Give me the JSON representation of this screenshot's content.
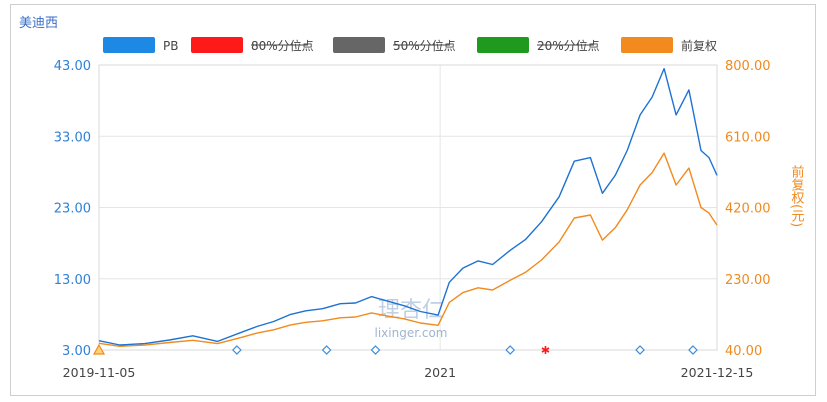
{
  "chart_data": {
    "type": "line",
    "title": "美迪西",
    "x_tick_labels": [
      "2019-11-05",
      "2021",
      "2021-12-15"
    ],
    "x_range": [
      "2019-11-05",
      "2021-12-15"
    ],
    "y_left": {
      "ticks": [
        "3.00",
        "13.00",
        "23.00",
        "33.00",
        "43.00"
      ],
      "range": [
        3,
        43
      ],
      "color": "#2f82d6"
    },
    "y_right": {
      "label": "前复权(元)",
      "ticks": [
        "40.00",
        "230.00",
        "420.00",
        "610.00",
        "800.00"
      ],
      "range": [
        40,
        800
      ],
      "color": "#f08a1e"
    },
    "legend": [
      {
        "name": "PB",
        "color": "#1e88e5",
        "struck": false
      },
      {
        "name": "80%分位点",
        "color": "#ff1a1a",
        "struck": true
      },
      {
        "name": "50%分位点",
        "color": "#666666",
        "struck": true
      },
      {
        "name": "20%分位点",
        "color": "#1f9a1f",
        "struck": true
      },
      {
        "name": "前复权",
        "color": "#f28a1e",
        "struck": false
      }
    ],
    "legend_position": "top",
    "grid": true,
    "series": [
      {
        "name": "PB",
        "axis": "left",
        "x": [
          "2019-11-05",
          "2019-12-01",
          "2020-01-01",
          "2020-02-01",
          "2020-03-01",
          "2020-04-01",
          "2020-05-01",
          "2020-05-20",
          "2020-06-10",
          "2020-07-01",
          "2020-07-20",
          "2020-08-10",
          "2020-09-01",
          "2020-09-20",
          "2020-10-10",
          "2020-11-01",
          "2020-11-20",
          "2020-12-10",
          "2021-01-01",
          "2021-01-15",
          "2021-02-01",
          "2021-02-20",
          "2021-03-10",
          "2021-04-01",
          "2021-04-20",
          "2021-05-10",
          "2021-06-01",
          "2021-06-20",
          "2021-07-10",
          "2021-07-25",
          "2021-08-10",
          "2021-08-25",
          "2021-09-10",
          "2021-09-25",
          "2021-10-10",
          "2021-10-25",
          "2021-11-10",
          "2021-11-25",
          "2021-12-05",
          "2021-12-15"
        ],
        "values": [
          4.3,
          3.7,
          3.9,
          4.4,
          5.0,
          4.2,
          5.5,
          6.3,
          7.0,
          8.0,
          8.5,
          8.8,
          9.5,
          9.6,
          10.5,
          9.8,
          9.2,
          8.4,
          7.9,
          12.5,
          14.5,
          15.5,
          15.0,
          17.0,
          18.5,
          21.0,
          24.5,
          29.5,
          30.0,
          25.0,
          27.5,
          31.0,
          36.0,
          38.5,
          42.5,
          36.0,
          39.5,
          31.0,
          30.0,
          27.5
        ]
      },
      {
        "name": "前复权",
        "axis": "right",
        "x": [
          "2019-11-05",
          "2019-12-01",
          "2020-01-01",
          "2020-02-01",
          "2020-03-01",
          "2020-04-01",
          "2020-05-01",
          "2020-05-20",
          "2020-06-10",
          "2020-07-01",
          "2020-07-20",
          "2020-08-10",
          "2020-09-01",
          "2020-09-20",
          "2020-10-10",
          "2020-11-01",
          "2020-11-20",
          "2020-12-10",
          "2021-01-01",
          "2021-01-15",
          "2021-02-01",
          "2021-02-20",
          "2021-03-10",
          "2021-04-01",
          "2021-04-20",
          "2021-05-10",
          "2021-06-01",
          "2021-06-20",
          "2021-07-10",
          "2021-07-25",
          "2021-08-10",
          "2021-08-25",
          "2021-09-10",
          "2021-09-25",
          "2021-10-10",
          "2021-10-25",
          "2021-11-10",
          "2021-11-25",
          "2021-12-05",
          "2021-12-15"
        ],
        "values": [
          58,
          50,
          53,
          60,
          66,
          57,
          74,
          85,
          94,
          107,
          114,
          118,
          126,
          128,
          139,
          130,
          123,
          112,
          106,
          167,
          193,
          206,
          200,
          226,
          247,
          280,
          328,
          392,
          400,
          333,
          366,
          414,
          480,
          513,
          565,
          480,
          525,
          420,
          405,
          373
        ]
      }
    ],
    "markers": [
      {
        "date": "2019-11-05",
        "shape": "triangle",
        "color": "#f08a1e"
      },
      {
        "date": "2020-04-25",
        "shape": "diamond",
        "color": "#3a8bd6"
      },
      {
        "date": "2020-08-15",
        "shape": "diamond",
        "color": "#3a8bd6"
      },
      {
        "date": "2020-10-15",
        "shape": "diamond",
        "color": "#3a8bd6"
      },
      {
        "date": "2021-04-01",
        "shape": "diamond",
        "color": "#3a8bd6"
      },
      {
        "date": "2021-05-15",
        "shape": "asterisk",
        "color": "#ff1a1a"
      },
      {
        "date": "2021-09-10",
        "shape": "diamond",
        "color": "#3a8bd6"
      },
      {
        "date": "2021-11-15",
        "shape": "diamond",
        "color": "#3a8bd6"
      }
    ]
  },
  "watermark": {
    "main": "理杏仁",
    "sub": "lixinger.com"
  }
}
